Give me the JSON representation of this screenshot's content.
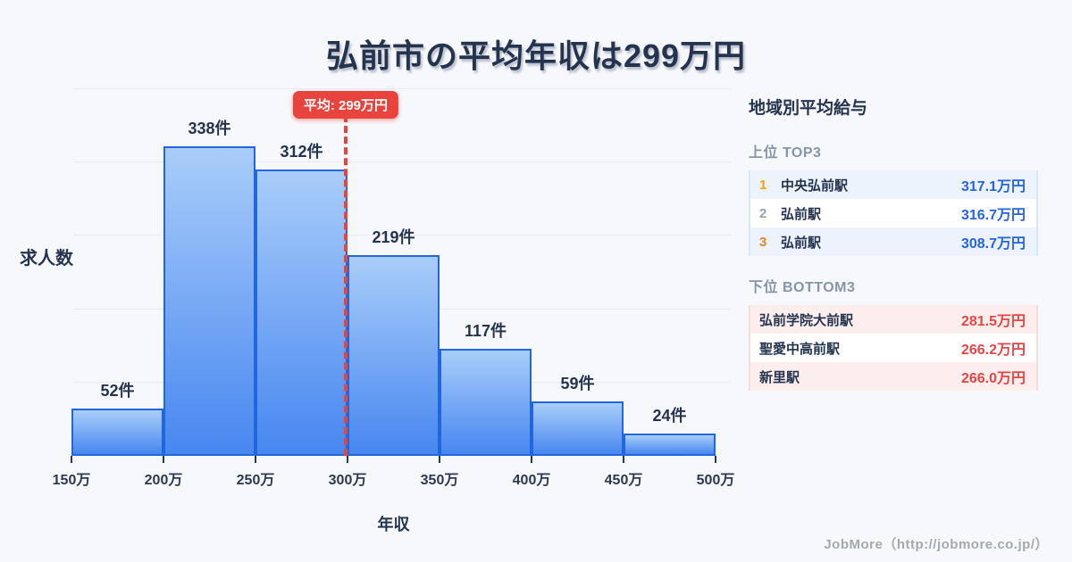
{
  "title": "弘前市の平均年収は299万円",
  "chart_data": {
    "type": "bar",
    "subtype": "histogram",
    "title": "弘前市の平均年収は299万円",
    "xlabel": "年収",
    "ylabel": "求人数",
    "bin_edges": [
      150,
      200,
      250,
      300,
      350,
      400,
      450,
      500
    ],
    "bin_edge_labels": [
      "150万",
      "200万",
      "250万",
      "300万",
      "350万",
      "400万",
      "450万",
      "500万"
    ],
    "values": [
      52,
      338,
      312,
      219,
      117,
      59,
      24
    ],
    "bar_labels": [
      "52件",
      "338件",
      "312件",
      "219件",
      "117件",
      "59件",
      "24件"
    ],
    "ylim": [
      0,
      400
    ],
    "gridline_values": [
      80,
      160,
      240,
      320,
      400
    ],
    "grid": "horizontal only",
    "average": {
      "value": 299,
      "label": "平均: 299万円",
      "line_color": "#e8433c"
    },
    "colors": {
      "bar_fill_top": "#a9cdf9",
      "bar_fill_bottom": "#4787f0",
      "bar_border": "#2266df"
    }
  },
  "panel": {
    "title": "地域別平均給与",
    "top3": {
      "heading": "上位 TOP3",
      "value_color": "#2563e8",
      "stripe_color": "#edf3fc",
      "rows": [
        {
          "rank": "1",
          "rank_color": "#f0a500",
          "name": "中央弘前駅",
          "value": "317.1万円"
        },
        {
          "rank": "2",
          "rank_color": "#97a1ae",
          "name": "弘前駅",
          "value": "316.7万円"
        },
        {
          "rank": "3",
          "rank_color": "#e8832a",
          "name": "弘前駅",
          "value": "308.7万円"
        }
      ]
    },
    "bottom3": {
      "heading": "下位 BOTTOM3",
      "value_color": "#e84545",
      "stripe_color": "#fdeeee",
      "rows": [
        {
          "name": "弘前学院大前駅",
          "value": "281.5万円"
        },
        {
          "name": "聖愛中高前駅",
          "value": "266.2万円"
        },
        {
          "name": "新里駅",
          "value": "266.0万円"
        }
      ]
    }
  },
  "footer": {
    "credit": "JobMore（http://jobmore.co.jp/）"
  }
}
